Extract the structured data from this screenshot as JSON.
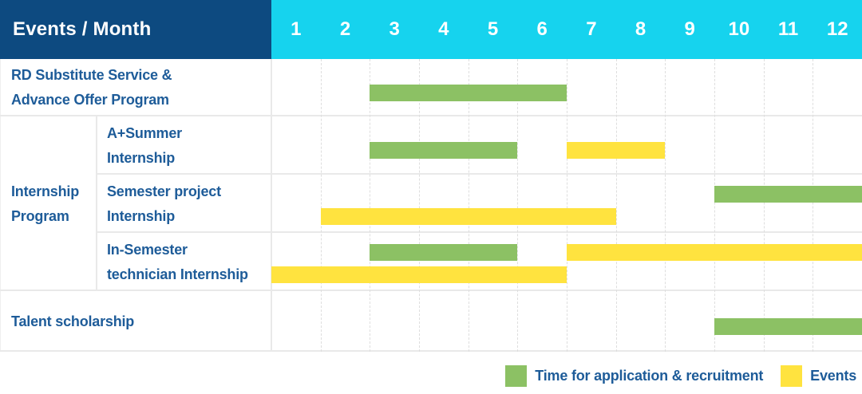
{
  "colors": {
    "header_navy": "#0d4a80",
    "header_cyan": "#16d3ee",
    "application_green": "#8cc164",
    "events_yellow": "#ffe33f",
    "label_blue": "#1e5c99",
    "grid": "#e9e9e9"
  },
  "table": {
    "corner_label": "Events / Month",
    "row_rd_label": "RD Substitute Service &\nAdvance Offer Program",
    "group_label": "Internship\nProgram",
    "sub_a_summer_label": "A+Summer\nInternship",
    "sub_semester_project_label": "Semester project\nInternship",
    "sub_in_semester_label": "In-Semester\ntechnician Internship",
    "row_talent_label": "Talent scholarship"
  },
  "chart_data": {
    "type": "bar",
    "subtype": "gantt-schedule",
    "title": "Events / Month",
    "x": [
      "1",
      "2",
      "3",
      "4",
      "5",
      "6",
      "7",
      "8",
      "9",
      "10",
      "11",
      "12"
    ],
    "x_range": [
      1,
      12
    ],
    "grid": true,
    "rows": [
      {
        "name": "RD Substitute Service & Advance Offer Program",
        "group": null,
        "segments": [
          {
            "kind": "application",
            "start_month": 3,
            "end_month": 6,
            "lane": "single"
          }
        ]
      },
      {
        "name": "A+Summer Internship",
        "group": "Internship Program",
        "segments": [
          {
            "kind": "application",
            "start_month": 3,
            "end_month": 5,
            "lane": "single"
          },
          {
            "kind": "events",
            "start_month": 7,
            "end_month": 8,
            "lane": "single"
          }
        ]
      },
      {
        "name": "Semester project Internship",
        "group": "Internship Program",
        "segments": [
          {
            "kind": "application",
            "start_month": 10,
            "end_month": 12,
            "lane": "top"
          },
          {
            "kind": "events",
            "start_month": 2,
            "end_month": 7,
            "lane": "bottom"
          }
        ]
      },
      {
        "name": "In-Semester technician Internship",
        "group": "Internship Program",
        "segments": [
          {
            "kind": "application",
            "start_month": 3,
            "end_month": 5,
            "lane": "top"
          },
          {
            "kind": "events",
            "start_month": 7,
            "end_month": 12,
            "lane": "top"
          },
          {
            "kind": "events",
            "start_month": 1,
            "end_month": 6,
            "lane": "bottom"
          }
        ]
      },
      {
        "name": "Talent scholarship",
        "group": null,
        "segments": [
          {
            "kind": "application",
            "start_month": 10,
            "end_month": 12,
            "lane": "single"
          }
        ]
      }
    ],
    "legend": [
      {
        "kind": "application",
        "label": "Time for application & recruitment",
        "color": "#8cc164"
      },
      {
        "kind": "events",
        "label": "Events",
        "color": "#ffe33f"
      }
    ],
    "legend_position": "bottom-right"
  }
}
